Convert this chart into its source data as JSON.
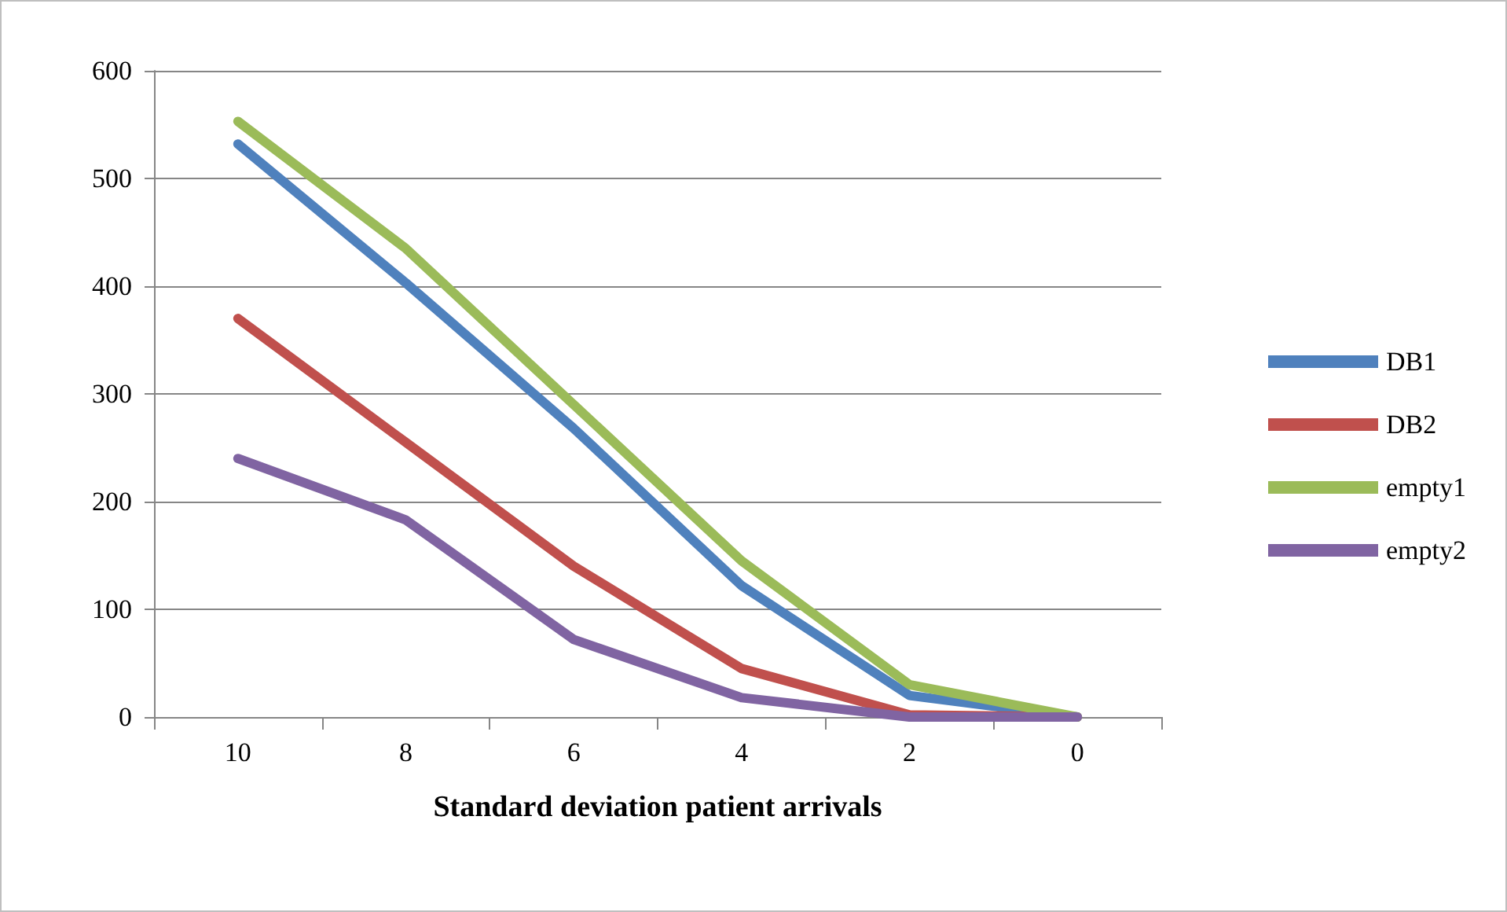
{
  "chart_data": {
    "type": "line",
    "xlabel": "Standard deviation patient arrivals",
    "categories": [
      "10",
      "8",
      "6",
      "4",
      "2",
      "0"
    ],
    "series": [
      {
        "name": "DB1",
        "color": "#4f81bd",
        "values": [
          532,
          403,
          268,
          122,
          20,
          0
        ]
      },
      {
        "name": "DB2",
        "color": "#c0504d",
        "values": [
          370,
          255,
          140,
          45,
          2,
          0
        ]
      },
      {
        "name": "empty1",
        "color": "#9bbb59",
        "values": [
          553,
          435,
          290,
          145,
          30,
          0
        ]
      },
      {
        "name": "empty2",
        "color": "#8064a2",
        "values": [
          240,
          183,
          72,
          18,
          0,
          0
        ]
      }
    ],
    "ylim": [
      0,
      600
    ],
    "yticks": [
      0,
      100,
      200,
      300,
      400,
      500,
      600
    ],
    "grid": "y",
    "legend": "right",
    "marker": "none",
    "line_style": "solid"
  }
}
